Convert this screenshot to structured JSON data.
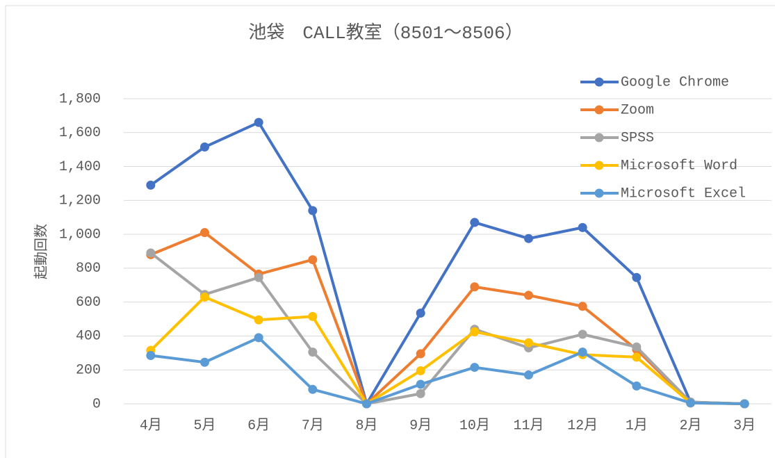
{
  "chart_data": {
    "type": "line",
    "title": "池袋　CALL教室（8501～8506）",
    "y_label": "起動回数",
    "categories": [
      "4月",
      "5月",
      "6月",
      "7月",
      "8月",
      "9月",
      "10月",
      "11月",
      "12月",
      "1月",
      "2月",
      "3月"
    ],
    "series": [
      {
        "name": "Google Chrome",
        "color": "#4472c4",
        "values": [
          1290,
          1515,
          1660,
          1140,
          0,
          535,
          1070,
          975,
          1040,
          745,
          10,
          0
        ]
      },
      {
        "name": "Zoom",
        "color": "#ed7d31",
        "values": [
          880,
          1010,
          765,
          850,
          0,
          295,
          690,
          640,
          575,
          320,
          5,
          0
        ]
      },
      {
        "name": "SPSS",
        "color": "#a5a5a5",
        "values": [
          890,
          645,
          745,
          305,
          0,
          60,
          440,
          330,
          410,
          335,
          10,
          0
        ]
      },
      {
        "name": "Microsoft Word",
        "color": "#ffc000",
        "values": [
          315,
          630,
          495,
          515,
          0,
          195,
          425,
          360,
          290,
          275,
          5,
          0
        ]
      },
      {
        "name": "Microsoft Excel",
        "color": "#5b9bd5",
        "values": [
          285,
          245,
          390,
          85,
          0,
          115,
          215,
          170,
          305,
          105,
          5,
          0
        ]
      }
    ],
    "ylim": [
      0,
      1800
    ],
    "yticks": [
      0,
      200,
      400,
      600,
      800,
      {
        "value": 1000,
        "label": "1,000"
      },
      {
        "value": 1200,
        "label": "1,200"
      },
      {
        "value": 1400,
        "label": "1,400"
      },
      {
        "value": 1600,
        "label": "1,600"
      },
      {
        "value": 1800,
        "label": "1,800"
      }
    ],
    "grid": true,
    "legend": "top-right"
  }
}
